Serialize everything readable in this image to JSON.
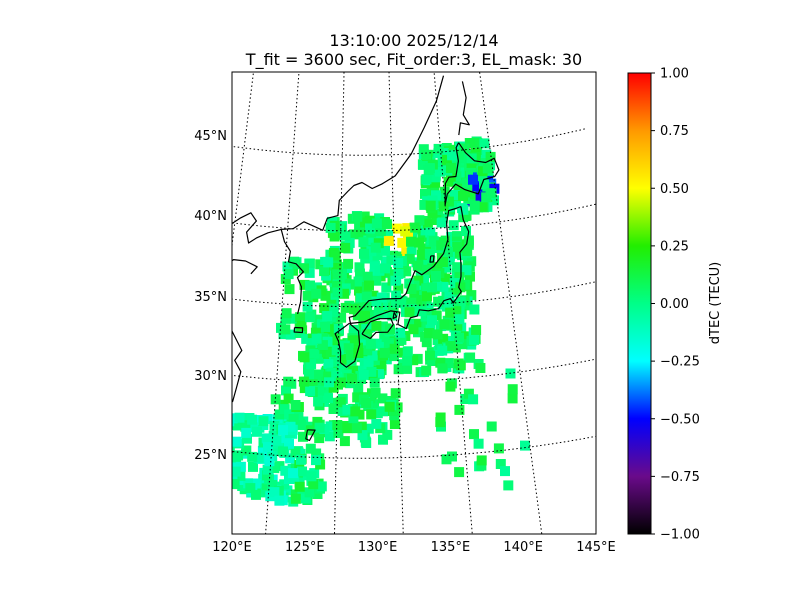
{
  "title": {
    "line1": "13:10:00 2025/12/14",
    "line2": "T_fit = 3600 sec, Fit_order:3, EL_mask: 30"
  },
  "map": {
    "lon_range": [
      120,
      145
    ],
    "lat_range": [
      20,
      49
    ],
    "lon_labels": [
      {
        "lon": 120,
        "text": "120°E"
      },
      {
        "lon": 125,
        "text": "125°E"
      },
      {
        "lon": 130,
        "text": "130°E"
      },
      {
        "lon": 135,
        "text": "135°E"
      },
      {
        "lon": 140,
        "text": "140°E"
      },
      {
        "lon": 145,
        "text": "145°E"
      }
    ],
    "lat_labels": [
      {
        "lat": 25,
        "text": "25°N"
      },
      {
        "lat": 30,
        "text": "30°N"
      },
      {
        "lat": 35,
        "text": "35°N"
      },
      {
        "lat": 40,
        "text": "40°N"
      },
      {
        "lat": 45,
        "text": "45°N"
      }
    ],
    "colors": {
      "land_outline": "#000000",
      "graticule": "#000000",
      "frame": "#000000"
    }
  },
  "colorbar": {
    "label": "dTEC (TECU)",
    "range": [
      -1.0,
      1.0
    ],
    "ticks": [
      {
        "value": 1.0,
        "text": "1.00"
      },
      {
        "value": 0.75,
        "text": "0.75"
      },
      {
        "value": 0.5,
        "text": "0.50"
      },
      {
        "value": 0.25,
        "text": "0.25"
      },
      {
        "value": 0.0,
        "text": "0.00"
      },
      {
        "value": -0.25,
        "text": "−0.25"
      },
      {
        "value": -0.5,
        "text": "−0.50"
      },
      {
        "value": -0.75,
        "text": "−0.75"
      },
      {
        "value": -1.0,
        "text": "−1.00"
      }
    ],
    "colormap_stops": [
      {
        "v": -1.0,
        "c": "#000000"
      },
      {
        "v": -0.75,
        "c": "#6a0a8a"
      },
      {
        "v": -0.5,
        "c": "#0000ff"
      },
      {
        "v": -0.25,
        "c": "#00ffff"
      },
      {
        "v": 0.0,
        "c": "#00ff88"
      },
      {
        "v": 0.25,
        "c": "#22ee00"
      },
      {
        "v": 0.5,
        "c": "#ffff00"
      },
      {
        "v": 0.75,
        "c": "#ff9900"
      },
      {
        "v": 1.0,
        "c": "#ff0000"
      }
    ]
  }
}
